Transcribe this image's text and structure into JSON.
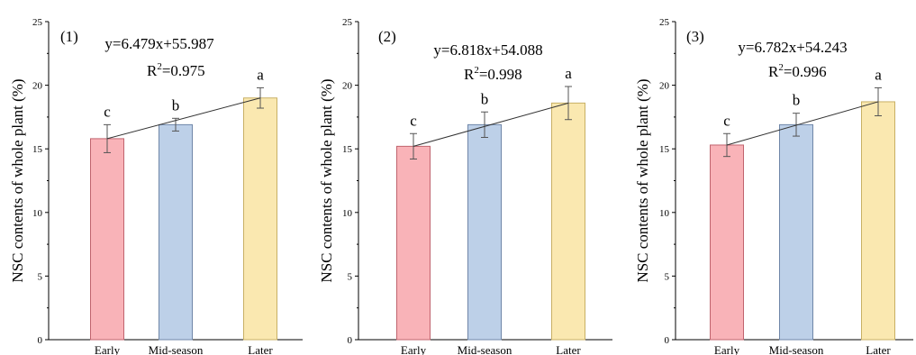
{
  "chart_data": [
    {
      "type": "bar",
      "panel": "(1)",
      "categories": [
        "Early",
        "Mid-season",
        "Later"
      ],
      "values": [
        15.8,
        16.9,
        19.0
      ],
      "errors": [
        1.1,
        0.5,
        0.8
      ],
      "letters": [
        "c",
        "b",
        "a"
      ],
      "colors": [
        "#f9b3b8",
        "#bdd0e8",
        "#fae8b0"
      ],
      "edge_colors": [
        "#c0646e",
        "#6f86a8",
        "#c8b064"
      ],
      "trendline": [
        15.8,
        19.0
      ],
      "equation": "y=6.479x+55.987",
      "r2_label": "R",
      "r2_sup": "2",
      "r2_value": "=0.975",
      "ylabel": "NSC contents of whole plant (%)",
      "ylim": [
        0,
        25
      ],
      "yticks": [
        "0",
        "5",
        "10",
        "15",
        "20",
        "25"
      ]
    },
    {
      "type": "bar",
      "panel": "(2)",
      "categories": [
        "Early",
        "Mid-season",
        "Later"
      ],
      "values": [
        15.2,
        16.9,
        18.6
      ],
      "errors": [
        1.0,
        1.0,
        1.3
      ],
      "letters": [
        "c",
        "b",
        "a"
      ],
      "colors": [
        "#f9b3b8",
        "#bdd0e8",
        "#fae8b0"
      ],
      "edge_colors": [
        "#c0646e",
        "#6f86a8",
        "#c8b064"
      ],
      "trendline": [
        15.2,
        18.6
      ],
      "equation": "y=6.818x+54.088",
      "r2_label": "R",
      "r2_sup": "2",
      "r2_value": "=0.998",
      "ylabel": "NSC contents of whole plant (%)",
      "ylim": [
        0,
        25
      ],
      "yticks": [
        "0",
        "5",
        "10",
        "15",
        "20",
        "25"
      ]
    },
    {
      "type": "bar",
      "panel": "(3)",
      "categories": [
        "Early",
        "Mid-season",
        "Later"
      ],
      "values": [
        15.3,
        16.9,
        18.7
      ],
      "errors": [
        0.9,
        0.9,
        1.1
      ],
      "letters": [
        "c",
        "b",
        "a"
      ],
      "colors": [
        "#f9b3b8",
        "#bdd0e8",
        "#fae8b0"
      ],
      "edge_colors": [
        "#c0646e",
        "#6f86a8",
        "#c8b064"
      ],
      "trendline": [
        15.3,
        18.7
      ],
      "equation": "y=6.782x+54.243",
      "r2_label": "R",
      "r2_sup": "2",
      "r2_value": "=0.996",
      "ylabel": "NSC contents of whole plant (%)",
      "ylim": [
        0,
        25
      ],
      "yticks": [
        "0",
        "5",
        "10",
        "15",
        "20",
        "25"
      ]
    }
  ]
}
